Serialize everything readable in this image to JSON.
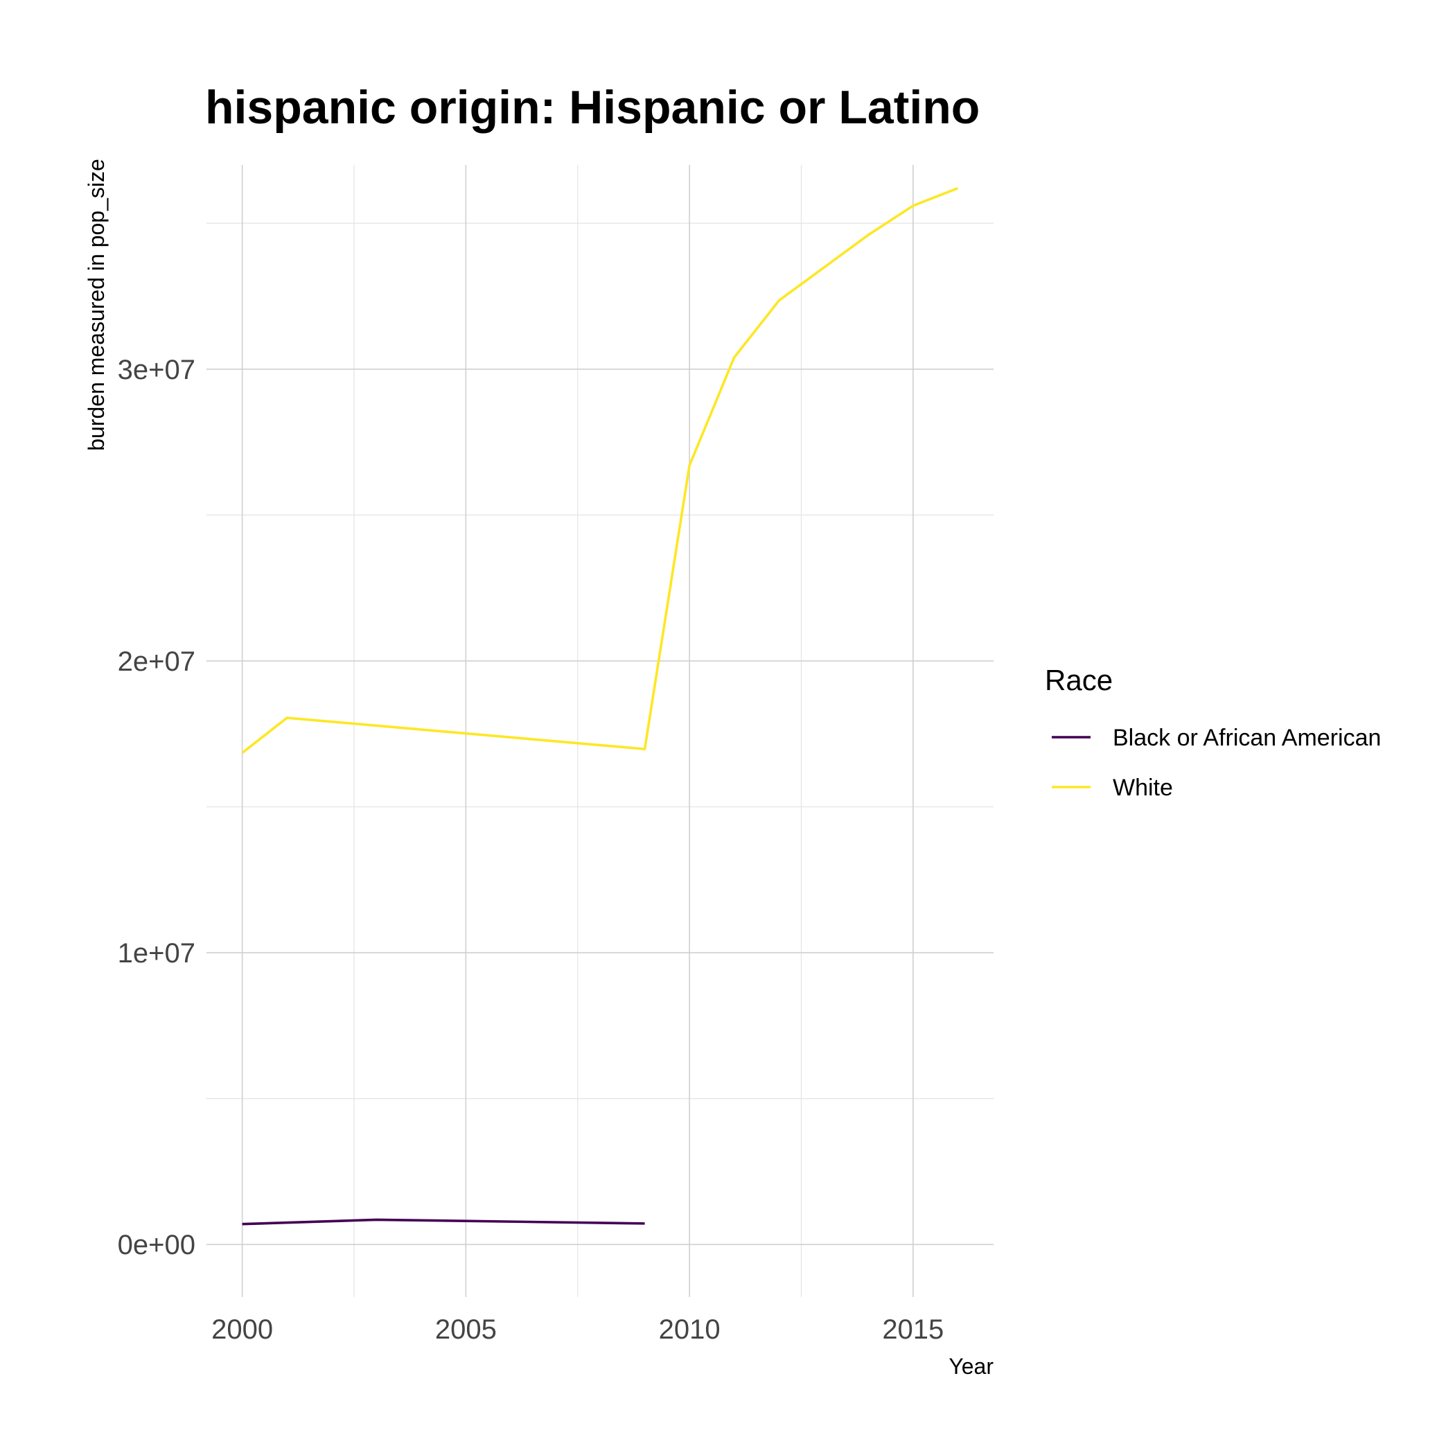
{
  "chart_data": {
    "type": "line",
    "title": "hispanic origin: Hispanic or Latino",
    "xlabel": "Year",
    "ylabel": "burden measured in pop_size",
    "xlim": [
      1999.2,
      2016.8
    ],
    "ylim": [
      -1800000,
      37000000
    ],
    "x_ticks": [
      2000,
      2005,
      2010,
      2015
    ],
    "x_tick_labels": [
      "2000",
      "2005",
      "2010",
      "2015"
    ],
    "y_ticks": [
      0,
      10000000,
      20000000,
      30000000
    ],
    "y_tick_labels": [
      "0e+00",
      "1e+07",
      "2e+07",
      "3e+07"
    ],
    "grid": true,
    "legend": {
      "title": "Race",
      "position": "right"
    },
    "series": [
      {
        "name": "Black or African American",
        "color": "#440154",
        "x": [
          2000,
          2003,
          2009
        ],
        "y": [
          700000,
          850000,
          720000
        ]
      },
      {
        "name": "White",
        "color": "#FDE725",
        "x": [
          2000,
          2001,
          2009,
          2010,
          2011,
          2012,
          2014,
          2015,
          2016
        ],
        "y": [
          16850000,
          18050000,
          16980000,
          26700000,
          30400000,
          32350000,
          34600000,
          35600000,
          36200000
        ]
      }
    ]
  }
}
